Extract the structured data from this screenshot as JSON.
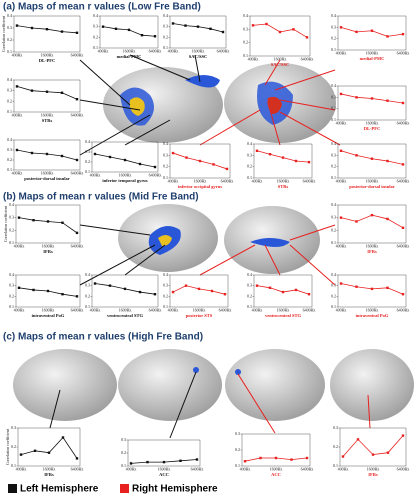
{
  "panels": [
    {
      "title": "(a) Maps of mean r values (Low Fre Band)"
    },
    {
      "title": "(b) Maps of mean r values (Mid Fre Band)"
    },
    {
      "title": "(c) Maps of mean r values (High Fre Band)"
    }
  ],
  "legend": [
    {
      "label": "Left Hemisphere",
      "color": "#111111"
    },
    {
      "label": "Right Hemisphere",
      "color": "#e8201f"
    }
  ],
  "chart_data": [
    {
      "type": "line",
      "name": "DL-PFC",
      "ylabel": "Correlation coefficient",
      "color": "#111111",
      "categories": [
        "400Hz",
        null,
        "1600Hz",
        null,
        "6400Hz"
      ],
      "values": [
        0.32,
        0.3,
        0.29,
        0.27,
        0.26
      ],
      "ylim": [
        0.1,
        0.4
      ],
      "yticks": [
        0.1,
        0.2,
        0.3,
        0.4
      ]
    },
    {
      "type": "line",
      "name": "medial-PMC",
      "color": "#111111",
      "categories": [
        "400Hz",
        null,
        "1600Hz",
        null,
        "6400Hz"
      ],
      "values": [
        0.3,
        0.28,
        0.27,
        0.22,
        0.21
      ],
      "ylim": [
        0.1,
        0.4
      ],
      "yticks": [
        0.1,
        0.2,
        0.3,
        0.4
      ]
    },
    {
      "type": "line",
      "name": "SAC/SSC",
      "color": "#111111",
      "categories": [
        "400Hz",
        null,
        "1600Hz",
        null,
        "6400Hz"
      ],
      "values": [
        0.33,
        0.31,
        0.3,
        0.28,
        0.25
      ],
      "ylim": [
        0.1,
        0.4
      ],
      "yticks": [
        0.1,
        0.2,
        0.3,
        0.4
      ]
    },
    {
      "type": "line",
      "name": "STRs",
      "color": "#111111",
      "categories": [
        "400Hz",
        null,
        "1600Hz",
        null,
        "6400Hz"
      ],
      "values": [
        0.34,
        0.3,
        0.29,
        0.28,
        0.22
      ],
      "ylim": [
        0.1,
        0.4
      ],
      "yticks": [
        0.1,
        0.2,
        0.3,
        0.4
      ]
    },
    {
      "type": "line",
      "name": "posterior-dorsal insular",
      "color": "#111111",
      "categories": [
        "400Hz",
        null,
        "1600Hz",
        null,
        "6400Hz"
      ],
      "values": [
        0.3,
        0.27,
        0.26,
        0.24,
        0.2
      ],
      "ylim": [
        0.1,
        0.4
      ],
      "yticks": [
        0.1,
        0.2,
        0.3,
        0.4
      ]
    },
    {
      "type": "line",
      "name": "inferior temporal gyrus",
      "color": "#111111",
      "categories": [
        "400Hz",
        null,
        "1600Hz",
        null,
        "6400Hz"
      ],
      "values": [
        0.28,
        0.25,
        0.22,
        0.18,
        0.15
      ],
      "ylim": [
        0.1,
        0.4
      ],
      "yticks": [
        0.1,
        0.2,
        0.3,
        0.4
      ]
    },
    {
      "type": "line",
      "name": "SAC/SSC",
      "color": "#e8201f",
      "categories": [
        "400Hz",
        null,
        "1600Hz",
        null,
        "6400Hz"
      ],
      "values": [
        0.33,
        0.34,
        0.28,
        0.3,
        0.24
      ],
      "ylim": [
        0.1,
        0.4
      ],
      "yticks": [
        0.1,
        0.2,
        0.3,
        0.4
      ]
    },
    {
      "type": "line",
      "name": "medial-PMC",
      "color": "#e8201f",
      "categories": [
        "400Hz",
        null,
        "1600Hz",
        null,
        "6400Hz"
      ],
      "values": [
        0.3,
        0.26,
        0.27,
        0.22,
        0.24
      ],
      "ylim": [
        0.1,
        0.4
      ],
      "yticks": [
        0.1,
        0.2,
        0.3,
        0.4
      ]
    },
    {
      "type": "line",
      "name": "DL-PFC",
      "color": "#e8201f",
      "categories": [
        "400Hz",
        null,
        "1600Hz",
        null,
        "6400Hz"
      ],
      "values": [
        0.33,
        0.3,
        0.29,
        0.27,
        0.25
      ],
      "ylim": [
        0.1,
        0.4
      ],
      "yticks": [
        0.1,
        0.2,
        0.3,
        0.4
      ]
    },
    {
      "type": "line",
      "name": "inferior occipital gyrus",
      "color": "#e8201f",
      "categories": [
        "400Hz",
        null,
        "1600Hz",
        null,
        "6400Hz"
      ],
      "values": [
        0.32,
        0.28,
        0.25,
        0.22,
        0.18
      ],
      "ylim": [
        0.1,
        0.4
      ],
      "yticks": [
        0.1,
        0.2,
        0.3,
        0.4
      ]
    },
    {
      "type": "line",
      "name": "STRs",
      "color": "#e8201f",
      "categories": [
        "400Hz",
        null,
        "1600Hz",
        null,
        "6400Hz"
      ],
      "values": [
        0.34,
        0.31,
        0.28,
        0.25,
        0.24
      ],
      "ylim": [
        0.1,
        0.4
      ],
      "yticks": [
        0.1,
        0.2,
        0.3,
        0.4
      ]
    },
    {
      "type": "line",
      "name": "posterior-dorsal insular",
      "color": "#e8201f",
      "categories": [
        "400Hz",
        null,
        "1600Hz",
        null,
        "6400Hz"
      ],
      "values": [
        0.34,
        0.3,
        0.27,
        0.25,
        0.22
      ],
      "ylim": [
        0.1,
        0.4
      ],
      "yticks": [
        0.1,
        0.2,
        0.3,
        0.4
      ]
    },
    {
      "type": "line",
      "name": "IFRs",
      "ylabel": "Correlation coefficient",
      "color": "#111111",
      "categories": [
        "400Hz",
        null,
        "1600Hz",
        null,
        "6400Hz"
      ],
      "values": [
        0.3,
        0.28,
        0.27,
        0.26,
        0.18
      ],
      "ylim": [
        0.1,
        0.4
      ],
      "yticks": [
        0.1,
        0.2,
        0.3,
        0.4
      ]
    },
    {
      "type": "line",
      "name": "intraventral PoG",
      "color": "#111111",
      "categories": [
        "400Hz",
        null,
        "1600Hz",
        null,
        "6400Hz"
      ],
      "values": [
        0.28,
        0.26,
        0.25,
        0.22,
        0.2
      ],
      "ylim": [
        0.1,
        0.4
      ],
      "yticks": [
        0.1,
        0.2,
        0.3,
        0.4
      ]
    },
    {
      "type": "line",
      "name": "ventrocentral STG",
      "color": "#111111",
      "categories": [
        "400Hz",
        null,
        "1600Hz",
        null,
        "6400Hz"
      ],
      "values": [
        0.32,
        0.3,
        0.27,
        0.24,
        0.22
      ],
      "ylim": [
        0.1,
        0.4
      ],
      "yticks": [
        0.1,
        0.2,
        0.3,
        0.4
      ]
    },
    {
      "type": "line",
      "name": "posterior STS",
      "color": "#e8201f",
      "categories": [
        "400Hz",
        null,
        "1600Hz",
        null,
        "6400Hz"
      ],
      "values": [
        0.24,
        0.3,
        0.27,
        0.25,
        0.22
      ],
      "ylim": [
        0.1,
        0.4
      ],
      "yticks": [
        0.1,
        0.2,
        0.3,
        0.4
      ]
    },
    {
      "type": "line",
      "name": "ventrocentral STG",
      "color": "#e8201f",
      "categories": [
        "400Hz",
        null,
        "1600Hz",
        null,
        "6400Hz"
      ],
      "values": [
        0.3,
        0.28,
        0.24,
        0.26,
        0.22
      ],
      "ylim": [
        0.1,
        0.4
      ],
      "yticks": [
        0.1,
        0.2,
        0.3,
        0.4
      ]
    },
    {
      "type": "line",
      "name": "IFRs",
      "color": "#e8201f",
      "categories": [
        "400Hz",
        null,
        "1600Hz",
        null,
        "6400Hz"
      ],
      "values": [
        0.3,
        0.27,
        0.32,
        0.29,
        0.22
      ],
      "ylim": [
        0.1,
        0.4
      ],
      "yticks": [
        0.1,
        0.2,
        0.3,
        0.4
      ]
    },
    {
      "type": "line",
      "name": "intraventral PoG",
      "color": "#e8201f",
      "categories": [
        "400Hz",
        null,
        "1600Hz",
        null,
        "6400Hz"
      ],
      "values": [
        0.32,
        0.29,
        0.27,
        0.28,
        0.22
      ],
      "ylim": [
        0.1,
        0.4
      ],
      "yticks": [
        0.1,
        0.2,
        0.3,
        0.4
      ]
    },
    {
      "type": "line",
      "name": "IFRs",
      "ylabel": "Correlation coefficient",
      "color": "#111111",
      "categories": [
        "400Hz",
        null,
        "1600Hz",
        null,
        "6400Hz"
      ],
      "values": [
        0.16,
        0.18,
        0.17,
        0.25,
        0.14
      ],
      "ylim": [
        0.1,
        0.3
      ],
      "yticks": [
        0.1,
        0.2,
        0.3
      ]
    },
    {
      "type": "line",
      "name": "ACC",
      "color": "#111111",
      "categories": [
        "400Hz",
        null,
        "1600Hz",
        null,
        "6400Hz"
      ],
      "values": [
        0.12,
        0.13,
        0.13,
        0.14,
        0.15
      ],
      "ylim": [
        0.1,
        0.3
      ],
      "yticks": [
        0.1,
        0.2,
        0.3
      ]
    },
    {
      "type": "line",
      "name": "ACC",
      "color": "#e8201f",
      "categories": [
        "400Hz",
        null,
        "1600Hz",
        null,
        "6400Hz"
      ],
      "values": [
        0.13,
        0.15,
        0.15,
        0.14,
        0.15
      ],
      "ylim": [
        0.1,
        0.3
      ],
      "yticks": [
        0.1,
        0.2,
        0.3
      ]
    },
    {
      "type": "line",
      "name": "IFRs",
      "color": "#e8201f",
      "categories": [
        "400Hz",
        null,
        "1600Hz",
        null,
        "6400Hz"
      ],
      "values": [
        0.15,
        0.24,
        0.16,
        0.17,
        0.26
      ],
      "ylim": [
        0.1,
        0.3
      ],
      "yticks": [
        0.1,
        0.2,
        0.3
      ]
    }
  ]
}
